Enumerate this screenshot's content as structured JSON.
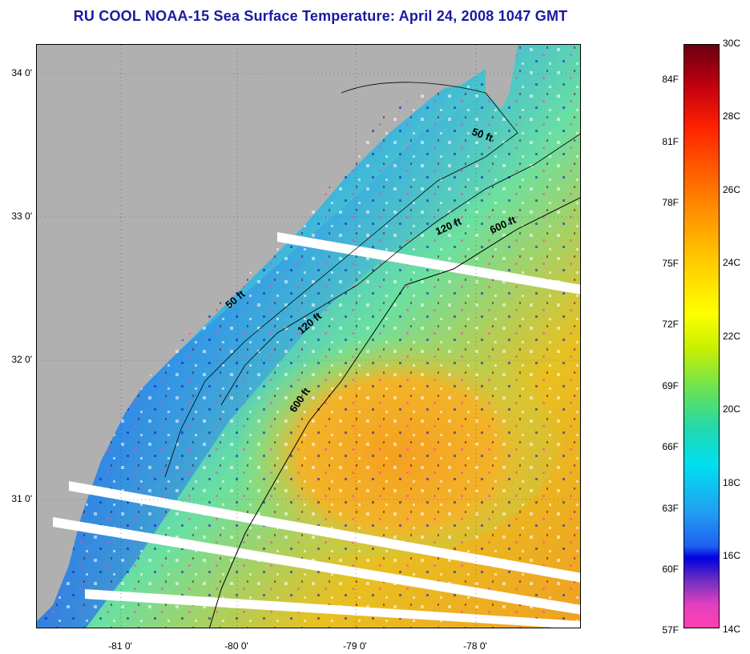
{
  "title": "RU COOL  NOAA-15  Sea Surface Temperature:  April 24, 2008 1047 GMT",
  "map": {
    "lat_labels": [
      {
        "text": "34 0'",
        "value": 34.0
      },
      {
        "text": "33 0'",
        "value": 33.0
      },
      {
        "text": "32 0'",
        "value": 32.0
      },
      {
        "text": "31 0'",
        "value": 31.0
      }
    ],
    "lon_labels": [
      {
        "text": "-81 0'",
        "value": -81.0
      },
      {
        "text": "-80 0'",
        "value": -80.0
      },
      {
        "text": "-79 0'",
        "value": -79.0
      },
      {
        "text": "-78 0'",
        "value": -78.0
      }
    ],
    "contour_labels": [
      "50 ft",
      "120 ft",
      "600 ft",
      "50 ft",
      "120 ft",
      "600 ft"
    ],
    "colors": {
      "land": "#b0b0b0",
      "cloud": "#ffffff",
      "cold": "#1e6cf0",
      "mid": "#4ed9d0",
      "warm": "#f5a61e"
    }
  },
  "colorbar": {
    "celsius": [
      "30C",
      "28C",
      "26C",
      "24C",
      "22C",
      "20C",
      "18C",
      "16C",
      "14C"
    ],
    "fahrenheit": [
      "84F",
      "81F",
      "78F",
      "75F",
      "72F",
      "69F",
      "66F",
      "63F",
      "60F",
      "57F"
    ],
    "range_c": [
      14,
      30
    ]
  }
}
